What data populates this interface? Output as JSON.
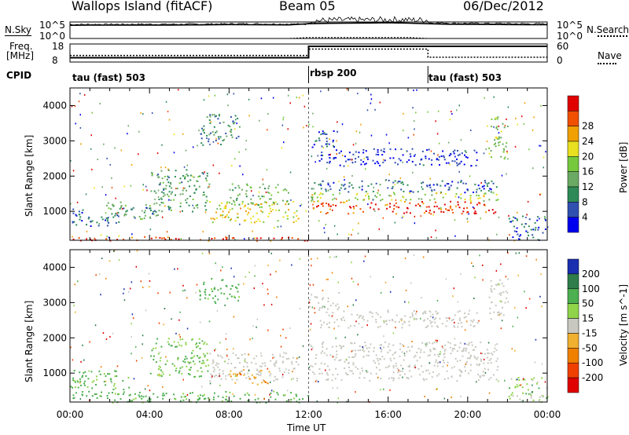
{
  "header": {
    "radar": "Wallops Island (fitACF)",
    "beam": "Beam 05",
    "date": "06/Dec/2012"
  },
  "top_panel": {
    "left_label": "N.Sky",
    "right_label": "N.Search",
    "left_ticks": [
      "10^5",
      "10^0"
    ],
    "right_ticks": [
      "10^5",
      "10^0"
    ]
  },
  "freq_panel": {
    "left_label_1": "Freq.",
    "left_label_2": "[MHz]",
    "right_label": "Nave",
    "left_ticks": [
      "18",
      "8"
    ],
    "right_ticks": [
      "60",
      "0"
    ]
  },
  "cpid": {
    "label": "CPID",
    "segments": [
      {
        "label": "tau (fast) 503",
        "start_h": 0,
        "end_h": 12
      },
      {
        "label": "rbsp 200",
        "start_h": 12,
        "end_h": 18
      },
      {
        "label": "tau (fast) 503",
        "start_h": 18,
        "end_h": 24
      }
    ]
  },
  "colors": {
    "power": [
      "#0000ee",
      "#3050b0",
      "#2e8b57",
      "#6aaa64",
      "#76c83c",
      "#e8e020",
      "#f0a000",
      "#f05000",
      "#e00000"
    ],
    "velocity": [
      "#1a2fb0",
      "#2e7d4a",
      "#4caf50",
      "#8fd44a",
      "#c8c8c0",
      "#f0b030",
      "#f08000",
      "#f04000",
      "#e00000"
    ]
  },
  "chart_data": [
    {
      "type": "line",
      "title": "N.Sky / N.Search",
      "x": [
        0,
        1,
        2,
        3,
        4,
        5,
        6,
        7,
        8,
        9,
        10,
        11,
        12,
        13,
        14,
        15,
        16,
        17,
        18,
        19,
        20,
        21,
        22,
        23,
        24
      ],
      "series": [
        {
          "name": "N.Sky",
          "values": [
            10000,
            11000,
            11000,
            12000,
            12000,
            12000,
            13000,
            14000,
            16000,
            15000,
            14000,
            13000,
            30000,
            40000,
            45000,
            50000,
            60000,
            45000,
            30000,
            22000,
            20000,
            18000,
            16000,
            15000,
            15000
          ]
        },
        {
          "name": "N.Search",
          "values": [
            1,
            1,
            1,
            1,
            1,
            1,
            1,
            1,
            1,
            1,
            1,
            1,
            2,
            2,
            2,
            2,
            2,
            2,
            1,
            1,
            1,
            1,
            1,
            1,
            1
          ]
        }
      ]
    },
    {
      "type": "line",
      "title": "Freq. [MHz] / Nave",
      "x": [
        0,
        12,
        12,
        18,
        18,
        24
      ],
      "series": [
        {
          "name": "Freq.",
          "values": [
            10.4,
            10.4,
            16.7,
            16.7,
            16.7,
            16.7
          ]
        },
        {
          "name": "Nave",
          "values": [
            22,
            22,
            43,
            43,
            16,
            16
          ]
        }
      ]
    },
    {
      "type": "heatmap",
      "xlabel": "",
      "ylabel": "Slant Range [km]",
      "colorbar_label": "Power [dB]",
      "colorbar_ticks": [
        4,
        8,
        12,
        16,
        20,
        24,
        28
      ],
      "xlim": [
        0,
        24
      ],
      "ylim": [
        180,
        4500
      ],
      "yticks": [
        1000,
        2000,
        3000,
        4000
      ],
      "blobs": [
        {
          "t0": 0.0,
          "t1": 12.0,
          "r0": 180,
          "r1": 300,
          "v": 28
        },
        {
          "t0": 0.0,
          "t1": 2.5,
          "r0": 600,
          "r1": 1100,
          "v": 8
        },
        {
          "t0": 1.8,
          "t1": 4.5,
          "r0": 800,
          "r1": 1300,
          "v": 12
        },
        {
          "t0": 4.0,
          "t1": 7.0,
          "r0": 1000,
          "r1": 2200,
          "v": 12
        },
        {
          "t0": 6.5,
          "t1": 8.5,
          "r0": 2900,
          "r1": 3800,
          "v": 10
        },
        {
          "t0": 7.0,
          "t1": 11.5,
          "r0": 700,
          "r1": 1300,
          "v": 20
        },
        {
          "t0": 8.0,
          "t1": 11.0,
          "r0": 1200,
          "r1": 1800,
          "v": 14
        },
        {
          "t0": 12.0,
          "t1": 21.5,
          "r0": 950,
          "r1": 1300,
          "v": 28
        },
        {
          "t0": 12.0,
          "t1": 21.5,
          "r0": 1300,
          "r1": 1550,
          "v": 18
        },
        {
          "t0": 12.0,
          "t1": 21.5,
          "r0": 1550,
          "r1": 1900,
          "v": 8
        },
        {
          "t0": 12.5,
          "t1": 20.5,
          "r0": 2300,
          "r1": 2800,
          "v": 5
        },
        {
          "t0": 12.0,
          "t1": 13.5,
          "r0": 2800,
          "r1": 3300,
          "v": 6
        },
        {
          "t0": 21.0,
          "t1": 22.0,
          "r0": 2500,
          "r1": 3700,
          "v": 16
        },
        {
          "t0": 22.0,
          "t1": 24.0,
          "r0": 200,
          "r1": 900,
          "v": 8
        }
      ]
    },
    {
      "type": "heatmap",
      "xlabel": "Time UT",
      "ylabel": "Slant Range [km]",
      "colorbar_label": "Velocity [m s^-1]",
      "colorbar_ticks": [
        200,
        100,
        50,
        15,
        -15,
        -50,
        -100,
        -200
      ],
      "xlim": [
        0,
        24
      ],
      "ylim": [
        180,
        4500
      ],
      "yticks": [
        1000,
        2000,
        3000,
        4000
      ],
      "xticks": [
        "00:00",
        "04:00",
        "08:00",
        "12:00",
        "16:00",
        "20:00",
        "00:00"
      ],
      "blobs": [
        {
          "t0": 0.0,
          "t1": 12.0,
          "r0": 180,
          "r1": 500,
          "v": 40
        },
        {
          "t0": 0.0,
          "t1": 3.0,
          "r0": 550,
          "r1": 1100,
          "v": 40
        },
        {
          "t0": 4.0,
          "t1": 7.0,
          "r0": 900,
          "r1": 2000,
          "v": 30
        },
        {
          "t0": 6.5,
          "t1": 8.5,
          "r0": 3000,
          "r1": 3700,
          "v": 40
        },
        {
          "t0": 7.0,
          "t1": 11.5,
          "r0": 800,
          "r1": 1600,
          "v": 0
        },
        {
          "t0": 8.0,
          "t1": 10.0,
          "r0": 700,
          "r1": 1100,
          "v": -30
        },
        {
          "t0": 12.0,
          "t1": 21.5,
          "r0": 800,
          "r1": 1900,
          "v": 0
        },
        {
          "t0": 12.5,
          "t1": 20.5,
          "r0": 2300,
          "r1": 2800,
          "v": 0
        },
        {
          "t0": 12.0,
          "t1": 13.5,
          "r0": 2800,
          "r1": 3300,
          "v": 0
        },
        {
          "t0": 21.0,
          "t1": 22.0,
          "r0": 2500,
          "r1": 3700,
          "v": 5
        },
        {
          "t0": 22.0,
          "t1": 24.0,
          "r0": 200,
          "r1": 900,
          "v": 20
        }
      ]
    }
  ]
}
